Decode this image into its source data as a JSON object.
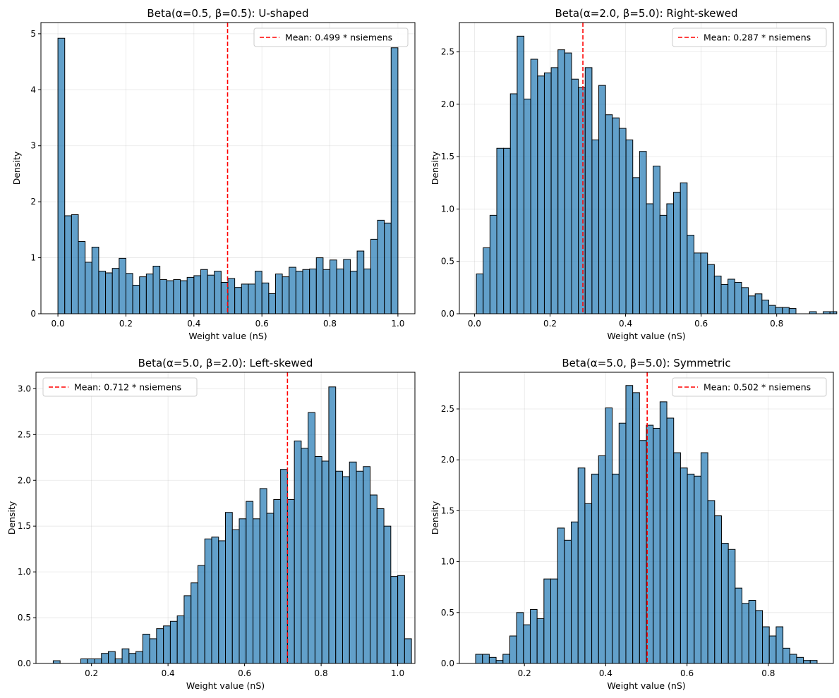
{
  "colors": {
    "bar_fill": "#1f77b4",
    "bar_edge": "#000000",
    "mean_line": "#ff0000",
    "grid": "#b0b0b0"
  },
  "chart_data": [
    {
      "type": "bar",
      "subtype": "histogram",
      "title": "Beta(α=0.5, β=0.5): U-shaped",
      "xlabel": "Weight value (nS)",
      "ylabel": "Density",
      "xlim": [
        -0.05,
        1.05
      ],
      "ylim": [
        0,
        5.2
      ],
      "xticks": [
        0.0,
        0.2,
        0.4,
        0.6,
        0.8,
        1.0
      ],
      "xtick_labels": [
        "0.0",
        "0.2",
        "0.4",
        "0.6",
        "0.8",
        "1.0"
      ],
      "yticks": [
        0,
        1,
        2,
        3,
        4,
        5
      ],
      "ytick_labels": [
        "0",
        "1",
        "2",
        "3",
        "4",
        "5"
      ],
      "bin_start": 0.0,
      "bin_width": 0.02,
      "values": [
        4.92,
        1.75,
        1.77,
        1.29,
        0.92,
        1.19,
        0.76,
        0.73,
        0.81,
        0.99,
        0.72,
        0.51,
        0.66,
        0.71,
        0.85,
        0.61,
        0.59,
        0.61,
        0.59,
        0.65,
        0.68,
        0.79,
        0.69,
        0.76,
        0.56,
        0.63,
        0.47,
        0.53,
        0.53,
        0.76,
        0.55,
        0.36,
        0.71,
        0.66,
        0.83,
        0.76,
        0.79,
        0.8,
        1.0,
        0.79,
        0.96,
        0.8,
        0.97,
        0.76,
        1.12,
        0.8,
        1.33,
        1.67,
        1.62,
        4.75
      ],
      "mean": 0.499,
      "legend": "Mean: 0.499 * nsiemens",
      "legend_position": "upper-right",
      "grid": true
    },
    {
      "type": "bar",
      "subtype": "histogram",
      "title": "Beta(α=2.0, β=5.0): Right-skewed",
      "xlabel": "Weight value (nS)",
      "ylabel": "Density",
      "xlim": [
        -0.04,
        0.95
      ],
      "ylim": [
        0,
        2.78
      ],
      "xticks": [
        0.0,
        0.2,
        0.4,
        0.6,
        0.8
      ],
      "xtick_labels": [
        "0.0",
        "0.2",
        "0.4",
        "0.6",
        "0.8"
      ],
      "yticks": [
        0.0,
        0.5,
        1.0,
        1.5,
        2.0,
        2.5
      ],
      "ytick_labels": [
        "0.0",
        "0.5",
        "1.0",
        "1.5",
        "2.0",
        "2.5"
      ],
      "bin_start": 0.005,
      "bin_width": 0.018,
      "values": [
        0.38,
        0.63,
        0.94,
        1.58,
        1.58,
        2.1,
        2.65,
        2.05,
        2.43,
        2.27,
        2.3,
        2.35,
        2.52,
        2.49,
        2.24,
        2.16,
        2.35,
        1.66,
        2.18,
        1.9,
        1.87,
        1.77,
        1.66,
        1.3,
        1.55,
        1.05,
        1.41,
        0.94,
        1.05,
        1.16,
        1.25,
        0.75,
        0.58,
        0.58,
        0.47,
        0.36,
        0.28,
        0.33,
        0.3,
        0.25,
        0.17,
        0.19,
        0.13,
        0.08,
        0.06,
        0.06,
        0.05,
        0.0,
        0.0,
        0.02,
        0.0,
        0.02,
        0.02
      ],
      "mean": 0.287,
      "legend": "Mean: 0.287 * nsiemens",
      "legend_position": "upper-right",
      "grid": true
    },
    {
      "type": "bar",
      "subtype": "histogram",
      "title": "Beta(α=5.0, β=2.0): Left-skewed",
      "xlabel": "Weight value (nS)",
      "ylabel": "Density",
      "xlim": [
        0.055,
        1.045
      ],
      "ylim": [
        0,
        3.18
      ],
      "xticks": [
        0.2,
        0.4,
        0.6,
        0.8,
        1.0
      ],
      "xtick_labels": [
        "0.2",
        "0.4",
        "0.6",
        "0.8",
        "1.0"
      ],
      "yticks": [
        0.0,
        0.5,
        1.0,
        1.5,
        2.0,
        2.5,
        3.0
      ],
      "ytick_labels": [
        "0.0",
        "0.5",
        "1.0",
        "1.5",
        "2.0",
        "2.5",
        "3.0"
      ],
      "bin_start": 0.1,
      "bin_width": 0.018,
      "values": [
        0.03,
        0.0,
        0.0,
        0.0,
        0.05,
        0.05,
        0.05,
        0.11,
        0.13,
        0.05,
        0.16,
        0.11,
        0.13,
        0.32,
        0.27,
        0.38,
        0.41,
        0.46,
        0.52,
        0.74,
        0.88,
        1.07,
        1.36,
        1.38,
        1.34,
        1.65,
        1.46,
        1.58,
        1.77,
        1.58,
        1.91,
        1.64,
        1.79,
        2.12,
        1.79,
        2.43,
        2.35,
        2.74,
        2.26,
        2.21,
        3.02,
        2.1,
        2.04,
        2.2,
        2.1,
        2.15,
        1.84,
        1.69,
        1.5,
        0.95,
        0.96,
        0.27
      ],
      "mean": 0.712,
      "legend": "Mean: 0.712 * nsiemens",
      "legend_position": "upper-left",
      "grid": true
    },
    {
      "type": "bar",
      "subtype": "histogram",
      "title": "Beta(α=5.0, β=5.0): Symmetric",
      "xlabel": "Weight value (nS)",
      "ylabel": "Density",
      "xlim": [
        0.04,
        0.96
      ],
      "ylim": [
        0,
        2.86
      ],
      "xticks": [
        0.2,
        0.4,
        0.6,
        0.8
      ],
      "xtick_labels": [
        "0.2",
        "0.4",
        "0.6",
        "0.8"
      ],
      "yticks": [
        0.0,
        0.5,
        1.0,
        1.5,
        2.0,
        2.5
      ],
      "ytick_labels": [
        "0.0",
        "0.5",
        "1.0",
        "1.5",
        "2.0",
        "2.5"
      ],
      "bin_start": 0.08,
      "bin_width": 0.0168,
      "values": [
        0.09,
        0.09,
        0.06,
        0.03,
        0.09,
        0.27,
        0.5,
        0.38,
        0.53,
        0.44,
        0.83,
        0.83,
        1.33,
        1.21,
        1.39,
        1.92,
        1.57,
        1.86,
        2.04,
        2.51,
        1.86,
        2.36,
        2.73,
        2.66,
        2.19,
        2.34,
        2.31,
        2.57,
        2.41,
        2.07,
        1.92,
        1.86,
        1.84,
        2.07,
        1.6,
        1.45,
        1.18,
        1.12,
        0.74,
        0.59,
        0.62,
        0.52,
        0.36,
        0.27,
        0.36,
        0.15,
        0.09,
        0.06,
        0.03,
        0.03
      ],
      "mean": 0.502,
      "legend": "Mean: 0.502 * nsiemens",
      "legend_position": "upper-right",
      "grid": true
    }
  ]
}
